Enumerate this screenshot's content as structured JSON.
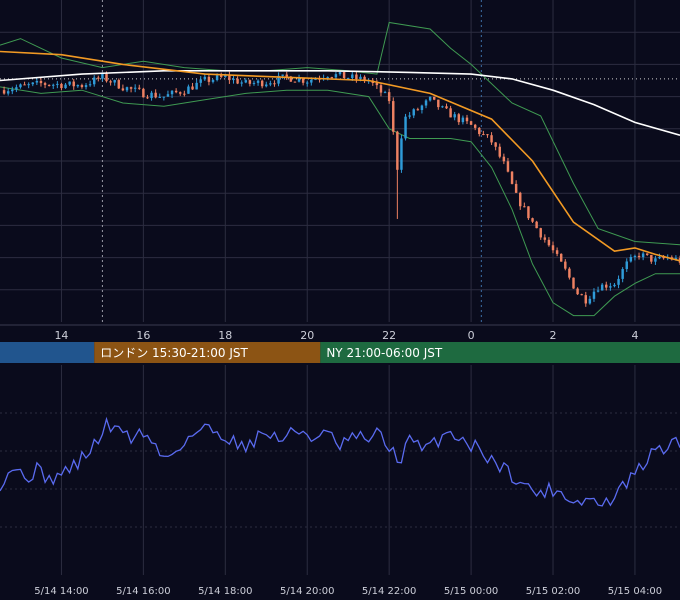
{
  "colors": {
    "background": "#0a0b1c",
    "grid": "#2c2d40",
    "candle_up": "#2f9bd8",
    "candle_down": "#ee8162",
    "bollinger": "#3f9a52",
    "ma_orange": "#f29a24",
    "ma_white": "#ffffff",
    "rsi_line": "#5a6bf0",
    "level_line": "#d0d0d0",
    "session_tokyo": "#21558e",
    "session_london": "#8c5414",
    "session_ny": "#1e6a40"
  },
  "chart_data": [
    {
      "type": "candlestick",
      "panel": "price",
      "x_unit": "hours from 5/14 12:30 JST",
      "xlim": [
        0,
        16.6
      ],
      "x_ticks": [
        {
          "x": 1.5,
          "label": "14"
        },
        {
          "x": 3.5,
          "label": "16"
        },
        {
          "x": 5.5,
          "label": "18"
        },
        {
          "x": 7.5,
          "label": "20"
        },
        {
          "x": 9.5,
          "label": "22"
        },
        {
          "x": 11.5,
          "label": "0"
        },
        {
          "x": 13.5,
          "label": "2"
        },
        {
          "x": 15.5,
          "label": "4"
        }
      ],
      "ylim": [
        0,
        1
      ],
      "y_gridlines": 9,
      "reference_level": 0.755,
      "session_markers": [
        2.5,
        11.75
      ],
      "anchors": [
        [
          0,
          0.72
        ],
        [
          1.0,
          0.74
        ],
        [
          2.0,
          0.735
        ],
        [
          2.5,
          0.76
        ],
        [
          3.0,
          0.73
        ],
        [
          3.5,
          0.71
        ],
        [
          4.0,
          0.7
        ],
        [
          4.5,
          0.72
        ],
        [
          5.0,
          0.75
        ],
        [
          5.5,
          0.76
        ],
        [
          6.0,
          0.74
        ],
        [
          6.5,
          0.745
        ],
        [
          7.0,
          0.76
        ],
        [
          7.5,
          0.75
        ],
        [
          8.0,
          0.77
        ],
        [
          8.5,
          0.76
        ],
        [
          9.0,
          0.75
        ],
        [
          9.5,
          0.69
        ],
        [
          9.7,
          0.48
        ],
        [
          9.85,
          0.63
        ],
        [
          10.2,
          0.66
        ],
        [
          10.5,
          0.69
        ],
        [
          10.8,
          0.66
        ],
        [
          11.2,
          0.63
        ],
        [
          11.5,
          0.61
        ],
        [
          12.0,
          0.56
        ],
        [
          12.3,
          0.49
        ],
        [
          12.6,
          0.39
        ],
        [
          13.0,
          0.31
        ],
        [
          13.5,
          0.22
        ],
        [
          13.8,
          0.16
        ],
        [
          14.1,
          0.09
        ],
        [
          14.3,
          0.07
        ],
        [
          14.6,
          0.11
        ],
        [
          15.0,
          0.12
        ],
        [
          15.3,
          0.18
        ],
        [
          15.6,
          0.21
        ],
        [
          16.0,
          0.19
        ],
        [
          16.3,
          0.2
        ],
        [
          16.6,
          0.19
        ]
      ],
      "ma_orange": [
        [
          0,
          0.84
        ],
        [
          1.5,
          0.83
        ],
        [
          3.0,
          0.8
        ],
        [
          5.0,
          0.77
        ],
        [
          7.0,
          0.76
        ],
        [
          9.0,
          0.75
        ],
        [
          10.5,
          0.71
        ],
        [
          12.0,
          0.63
        ],
        [
          13.0,
          0.5
        ],
        [
          14.0,
          0.31
        ],
        [
          15.0,
          0.22
        ],
        [
          15.5,
          0.23
        ],
        [
          16.0,
          0.21
        ],
        [
          16.6,
          0.19
        ]
      ],
      "ma_white": [
        [
          0,
          0.75
        ],
        [
          2.0,
          0.77
        ],
        [
          4.0,
          0.78
        ],
        [
          6.0,
          0.78
        ],
        [
          8.0,
          0.78
        ],
        [
          10.0,
          0.775
        ],
        [
          11.5,
          0.77
        ],
        [
          12.5,
          0.755
        ],
        [
          13.5,
          0.72
        ],
        [
          14.5,
          0.675
        ],
        [
          15.5,
          0.62
        ],
        [
          16.6,
          0.58
        ]
      ],
      "bollinger_upper": [
        [
          0,
          0.86
        ],
        [
          0.5,
          0.88
        ],
        [
          1.5,
          0.82
        ],
        [
          2.5,
          0.79
        ],
        [
          3.5,
          0.81
        ],
        [
          4.5,
          0.79
        ],
        [
          5.5,
          0.78
        ],
        [
          6.5,
          0.78
        ],
        [
          7.5,
          0.79
        ],
        [
          8.5,
          0.78
        ],
        [
          9.2,
          0.77
        ],
        [
          9.5,
          0.93
        ],
        [
          10.5,
          0.91
        ],
        [
          11.0,
          0.85
        ],
        [
          11.5,
          0.8
        ],
        [
          12.5,
          0.68
        ],
        [
          13.2,
          0.64
        ],
        [
          14.0,
          0.43
        ],
        [
          14.6,
          0.29
        ],
        [
          15.5,
          0.25
        ],
        [
          16.6,
          0.24
        ]
      ],
      "bollinger_lower": [
        [
          0,
          0.73
        ],
        [
          1.0,
          0.71
        ],
        [
          2.0,
          0.72
        ],
        [
          3.0,
          0.68
        ],
        [
          4.0,
          0.67
        ],
        [
          5.0,
          0.69
        ],
        [
          6.0,
          0.71
        ],
        [
          7.0,
          0.72
        ],
        [
          8.0,
          0.72
        ],
        [
          9.0,
          0.7
        ],
        [
          9.5,
          0.6
        ],
        [
          10.0,
          0.57
        ],
        [
          11.0,
          0.57
        ],
        [
          11.5,
          0.56
        ],
        [
          12.0,
          0.48
        ],
        [
          12.5,
          0.35
        ],
        [
          13.0,
          0.18
        ],
        [
          13.5,
          0.06
        ],
        [
          14.0,
          0.02
        ],
        [
          14.5,
          0.02
        ],
        [
          15.0,
          0.08
        ],
        [
          15.5,
          0.12
        ],
        [
          16.0,
          0.15
        ],
        [
          16.6,
          0.15
        ]
      ]
    },
    {
      "type": "line",
      "panel": "oscillator",
      "name": "",
      "x_unit": "hours from 5/14 12:30 JST",
      "xlim": [
        0,
        16.6
      ],
      "ylim": [
        0,
        1
      ],
      "x_ticks": [
        {
          "x": 1.5,
          "label": "5/14 14:00"
        },
        {
          "x": 3.5,
          "label": "5/14 16:00"
        },
        {
          "x": 5.5,
          "label": "5/14 18:00"
        },
        {
          "x": 7.5,
          "label": "5/14 20:00"
        },
        {
          "x": 9.5,
          "label": "5/14 22:00"
        },
        {
          "x": 11.5,
          "label": "5/15 00:00"
        },
        {
          "x": 13.5,
          "label": "5/15 02:00"
        },
        {
          "x": 15.5,
          "label": "5/15 04:00"
        }
      ],
      "points": [
        [
          0,
          0.43
        ],
        [
          0.3,
          0.52
        ],
        [
          0.6,
          0.46
        ],
        [
          0.9,
          0.5
        ],
        [
          1.2,
          0.45
        ],
        [
          1.5,
          0.48
        ],
        [
          1.8,
          0.52
        ],
        [
          2.1,
          0.58
        ],
        [
          2.4,
          0.66
        ],
        [
          2.6,
          0.74
        ],
        [
          2.8,
          0.7
        ],
        [
          3.0,
          0.72
        ],
        [
          3.2,
          0.67
        ],
        [
          3.5,
          0.7
        ],
        [
          3.8,
          0.62
        ],
        [
          4.0,
          0.56
        ],
        [
          4.2,
          0.59
        ],
        [
          4.4,
          0.63
        ],
        [
          4.6,
          0.67
        ],
        [
          4.8,
          0.7
        ],
        [
          5.0,
          0.72
        ],
        [
          5.3,
          0.7
        ],
        [
          5.6,
          0.67
        ],
        [
          5.9,
          0.62
        ],
        [
          6.2,
          0.66
        ],
        [
          6.5,
          0.7
        ],
        [
          6.8,
          0.66
        ],
        [
          7.1,
          0.69
        ],
        [
          7.4,
          0.71
        ],
        [
          7.7,
          0.66
        ],
        [
          8.0,
          0.69
        ],
        [
          8.3,
          0.62
        ],
        [
          8.6,
          0.67
        ],
        [
          8.9,
          0.66
        ],
        [
          9.2,
          0.69
        ],
        [
          9.5,
          0.62
        ],
        [
          9.8,
          0.55
        ],
        [
          10.0,
          0.67
        ],
        [
          10.3,
          0.6
        ],
        [
          10.6,
          0.64
        ],
        [
          10.9,
          0.7
        ],
        [
          11.2,
          0.68
        ],
        [
          11.5,
          0.63
        ],
        [
          11.8,
          0.6
        ],
        [
          12.0,
          0.55
        ],
        [
          12.3,
          0.51
        ],
        [
          12.6,
          0.46
        ],
        [
          12.9,
          0.4
        ],
        [
          13.2,
          0.38
        ],
        [
          13.5,
          0.4
        ],
        [
          13.8,
          0.37
        ],
        [
          14.1,
          0.33
        ],
        [
          14.4,
          0.35
        ],
        [
          14.7,
          0.31
        ],
        [
          15.0,
          0.36
        ],
        [
          15.3,
          0.43
        ],
        [
          15.6,
          0.5
        ],
        [
          15.9,
          0.58
        ],
        [
          16.2,
          0.62
        ],
        [
          16.6,
          0.64
        ]
      ]
    }
  ],
  "sessions": [
    {
      "label": "",
      "start": -1.5,
      "end": 2.3
    },
    {
      "label": "ロンドン 15:30-21:00 JST",
      "start": 2.3,
      "end": 7.82
    },
    {
      "label": "NY 21:00-06:00 JST",
      "start": 7.82,
      "end": 16.6
    }
  ]
}
